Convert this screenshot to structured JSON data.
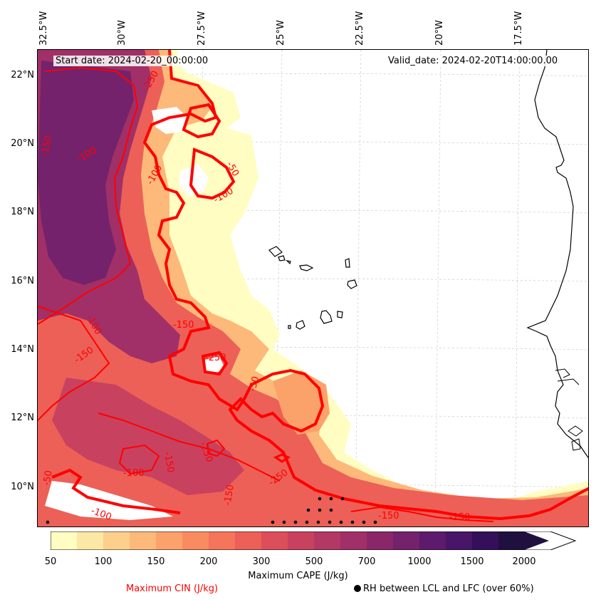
{
  "map": {
    "start_date": "Start date: 2024-02-20_00:00:00",
    "valid_date": "Valid_date: 2024-02-20T14:00:00.00",
    "lon_labels": [
      "32.5°W",
      "30°W",
      "27.5°W",
      "25°W",
      "22.5°W",
      "20°W",
      "17.5°W"
    ],
    "lat_labels": [
      "22°N",
      "20°N",
      "18°N",
      "16°N",
      "14°N",
      "12°N",
      "10°N"
    ],
    "cin_contour_labels": [
      "-50",
      "-100",
      "-150",
      "-250"
    ],
    "colors": {
      "cin_contour": "#ff0000",
      "coastline": "#000000",
      "gridline": "#cccccc"
    }
  },
  "colorbar": {
    "title": "Maximum CAPE (J/kg)",
    "ticks": [
      "50",
      "100",
      "150",
      "200",
      "300",
      "500",
      "700",
      "1000",
      "1500",
      "2000"
    ],
    "colors": [
      "#fffdc1",
      "#fde7a5",
      "#fdcf8d",
      "#fcb97a",
      "#fba26a",
      "#f98b60",
      "#f47559",
      "#ec6057",
      "#dc4e5a",
      "#c8425f",
      "#b33863",
      "#a03067",
      "#8a2769",
      "#74226c",
      "#5e1a6c",
      "#481568",
      "#331059",
      "#20103f"
    ]
  },
  "legend": {
    "cin": "Maximum CIN (J/kg)",
    "rh": "RH between LCL and LFC (over 60%)"
  }
}
